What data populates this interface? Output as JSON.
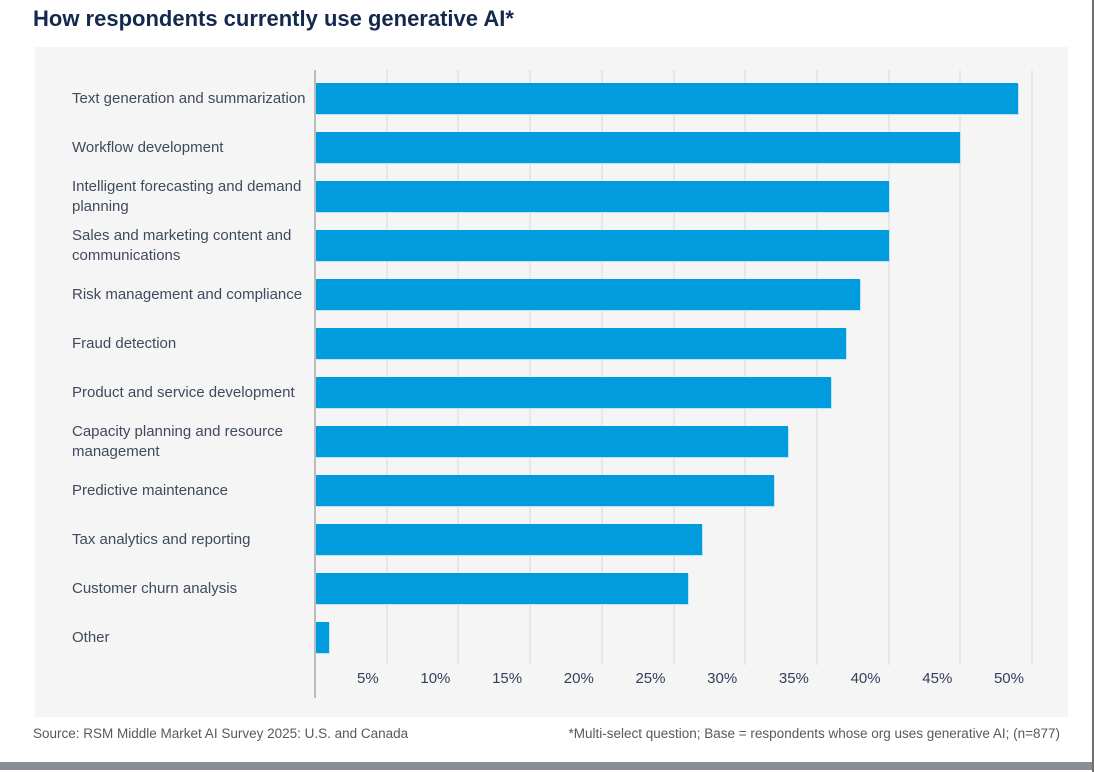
{
  "title": "How respondents currently use generative AI*",
  "chart_data": {
    "type": "bar",
    "orientation": "horizontal",
    "title": "How respondents currently use generative AI*",
    "categories": [
      "Text generation and summarization",
      "Workflow development",
      "Intelligent forecasting and demand planning",
      "Sales and marketing content and communications",
      "Risk management and compliance",
      "Fraud detection",
      "Product and service development",
      "Capacity planning and resource management",
      "Predictive maintenance",
      "Tax analytics and reporting",
      "Customer churn analysis",
      "Other"
    ],
    "values": [
      49,
      45,
      40,
      40,
      38,
      37,
      36,
      33,
      32,
      27,
      26,
      1
    ],
    "unit": "%",
    "x_ticks": [
      "5%",
      "10%",
      "15%",
      "20%",
      "25%",
      "30%",
      "35%",
      "40%",
      "45%",
      "50%"
    ],
    "x_tick_values": [
      5,
      10,
      15,
      20,
      25,
      30,
      35,
      40,
      45,
      50
    ],
    "xlim": [
      0,
      52.5
    ],
    "grid": true,
    "legend": "none",
    "bar_color": "#009CDE"
  },
  "footer": {
    "source": "Source: RSM Middle Market AI Survey 2025: U.S. and Canada",
    "note": "*Multi-select question; Base = respondents whose org uses generative AI; (n=877)"
  },
  "colors": {
    "bar": "#009CDE",
    "title_text": "#14294E",
    "label_text": "#3F4A5E",
    "panel_background": "#F5F5F5",
    "gridline": "#E7E7E9",
    "footer_text": "#58595B",
    "bottom_bar": "#878E99"
  }
}
